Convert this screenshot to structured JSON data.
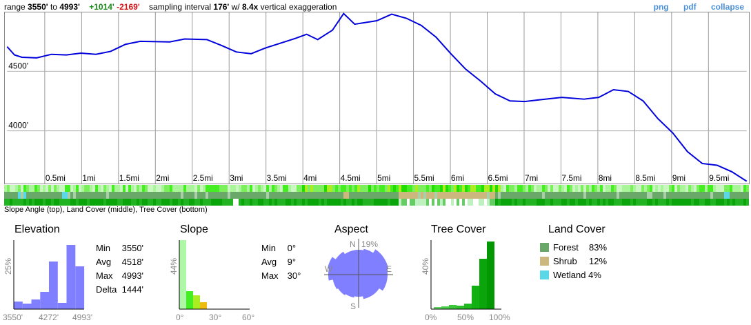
{
  "header": {
    "range_prefix": "range",
    "range_min": "3550'",
    "range_to": "to",
    "range_max": "4993'",
    "gain": "+1014'",
    "loss": "-2169'",
    "interval_prefix": "sampling interval",
    "interval": "176'",
    "interval_mid": "w/",
    "exaggeration": "8.4x",
    "exaggeration_suffix": "vertical exaggeration"
  },
  "links": {
    "png": "png",
    "pdf": "pdf",
    "collapse": "collapse"
  },
  "profile": {
    "y_labels": [
      "4500'",
      "4000'"
    ],
    "x_labels": [
      "0.5mi",
      "1mi",
      "1.5mi",
      "2mi",
      "2.5mi",
      "3mi",
      "3.5mi",
      "4mi",
      "4.5mi",
      "5mi",
      "5.5mi",
      "6mi",
      "6.5mi",
      "7mi",
      "7.5mi",
      "8mi",
      "8.5mi",
      "9mi",
      "9.5mi"
    ],
    "line_color": "#0000dd",
    "points": [
      [
        0,
        4710
      ],
      [
        0.1,
        4640
      ],
      [
        0.2,
        4620
      ],
      [
        0.4,
        4615
      ],
      [
        0.6,
        4645
      ],
      [
        0.8,
        4640
      ],
      [
        1,
        4655
      ],
      [
        1.2,
        4645
      ],
      [
        1.4,
        4670
      ],
      [
        1.6,
        4730
      ],
      [
        1.8,
        4755
      ],
      [
        2.2,
        4750
      ],
      [
        2.4,
        4775
      ],
      [
        2.7,
        4770
      ],
      [
        2.9,
        4720
      ],
      [
        3.1,
        4665
      ],
      [
        3.3,
        4650
      ],
      [
        3.5,
        4700
      ],
      [
        3.7,
        4740
      ],
      [
        3.9,
        4780
      ],
      [
        4.05,
        4815
      ],
      [
        4.2,
        4770
      ],
      [
        4.4,
        4850
      ],
      [
        4.55,
        4990
      ],
      [
        4.7,
        4900
      ],
      [
        5,
        4930
      ],
      [
        5.2,
        4985
      ],
      [
        5.4,
        4950
      ],
      [
        5.6,
        4890
      ],
      [
        5.8,
        4790
      ],
      [
        6,
        4650
      ],
      [
        6.2,
        4520
      ],
      [
        6.4,
        4420
      ],
      [
        6.6,
        4310
      ],
      [
        6.8,
        4250
      ],
      [
        7,
        4245
      ],
      [
        7.2,
        4260
      ],
      [
        7.5,
        4280
      ],
      [
        7.8,
        4265
      ],
      [
        8.0,
        4280
      ],
      [
        8.2,
        4345
      ],
      [
        8.4,
        4330
      ],
      [
        8.6,
        4250
      ],
      [
        8.8,
        4100
      ],
      [
        9.0,
        3980
      ],
      [
        9.2,
        3820
      ],
      [
        9.4,
        3720
      ],
      [
        9.6,
        3705
      ],
      [
        9.8,
        3650
      ],
      [
        10,
        3570
      ]
    ],
    "x_max": 10,
    "y_min": 3550,
    "y_max": 5000
  },
  "strips_caption": "Slope Angle (top), Land Cover (middle), Tree Cover (bottom)",
  "elevation": {
    "title": "Elevation",
    "y_axis_label": "25%",
    "x_labels": [
      "3550'",
      "4272'",
      "4993'"
    ],
    "color": "#7f7fff",
    "hist": [
      0.11,
      0.08,
      0.14,
      0.25,
      0.69,
      0.09,
      0.93,
      0.62
    ],
    "stats": [
      {
        "k": "Min",
        "v": "3550'"
      },
      {
        "k": "Avg",
        "v": "4518'"
      },
      {
        "k": "Max",
        "v": "4993'"
      },
      {
        "k": "Delta",
        "v": "1444'"
      }
    ]
  },
  "slope": {
    "title": "Slope",
    "y_axis_label": "44%",
    "x_labels": [
      "0°",
      "30°",
      "60°"
    ],
    "hist": [
      1.0,
      0.26,
      0.2,
      0.1
    ],
    "colors": [
      "#aef7a6",
      "#44ee22",
      "#aaee22",
      "#eebb11"
    ],
    "stats": [
      {
        "k": "Min",
        "v": "0°"
      },
      {
        "k": "Avg",
        "v": "9°"
      },
      {
        "k": "Max",
        "v": "30°"
      }
    ]
  },
  "aspect": {
    "title": "Aspect",
    "n": "N",
    "e": "E",
    "s": "S",
    "w": "W",
    "max_label": "19%",
    "color": "#7f7fff"
  },
  "tree_cover": {
    "title": "Tree Cover",
    "y_axis_label": "40%",
    "x_labels": [
      "0%",
      "50%",
      "100%"
    ],
    "hist": [
      0.03,
      0.04,
      0.06,
      0.05,
      0.08,
      0.34,
      0.73,
      0.98
    ],
    "colors": [
      "#5ed35e",
      "#4ccc4c",
      "#3cc63c",
      "#2cbf2c",
      "#1fb81f",
      "#13b013",
      "#0aa50a",
      "#049704"
    ]
  },
  "land_cover": {
    "title": "Land Cover",
    "items": [
      {
        "name": "Forest",
        "pct": "83%",
        "color": "#6aa86a"
      },
      {
        "name": "Shrub",
        "pct": "12%",
        "color": "#ccb87f"
      },
      {
        "name": "Wetland",
        "pct": "4%",
        "color": "#5ad8e8"
      }
    ]
  }
}
